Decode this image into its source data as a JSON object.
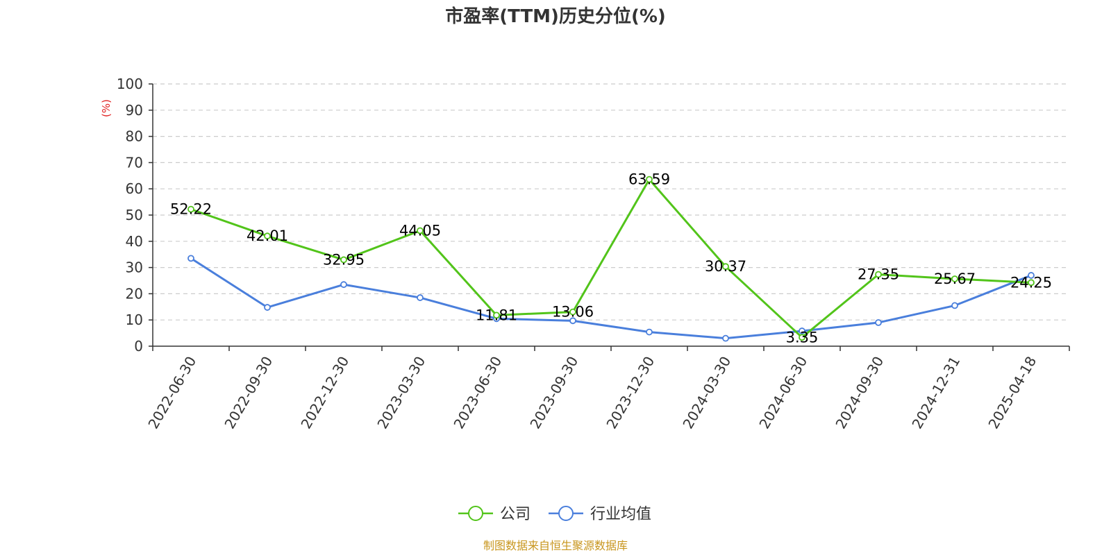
{
  "chart_data": {
    "type": "line",
    "title": "市盈率(TTM)历史分位(%)",
    "ylabel": "(%)",
    "ylim": [
      0,
      100
    ],
    "yticks": [
      0,
      10,
      20,
      30,
      40,
      50,
      60,
      70,
      80,
      90,
      100
    ],
    "grid": true,
    "legend_position": "bottom-center",
    "categories": [
      "2022-06-30",
      "2022-09-30",
      "2022-12-30",
      "2023-03-30",
      "2023-06-30",
      "2023-09-30",
      "2023-12-30",
      "2024-03-30",
      "2024-06-30",
      "2024-09-30",
      "2024-12-31",
      "2025-04-18"
    ],
    "series": [
      {
        "name": "公司",
        "color": "#52c41a",
        "values": [
          52.22,
          42.01,
          32.95,
          44.05,
          11.81,
          13.06,
          63.59,
          30.37,
          3.35,
          27.35,
          25.67,
          24.25
        ],
        "labels": [
          "52.22",
          "42.01",
          "32.95",
          "44.05",
          "11.81",
          "13.06",
          "63.59",
          "30.37",
          "3.35",
          "27.35",
          "25.67",
          "24.25"
        ]
      },
      {
        "name": "行业均值",
        "color": "#4a7fdc",
        "values": [
          33.5,
          14.8,
          23.5,
          18.5,
          10.5,
          9.7,
          5.4,
          3.0,
          5.8,
          9.0,
          15.5,
          27.0
        ]
      }
    ],
    "source": "制图数据来自恒生聚源数据库"
  }
}
